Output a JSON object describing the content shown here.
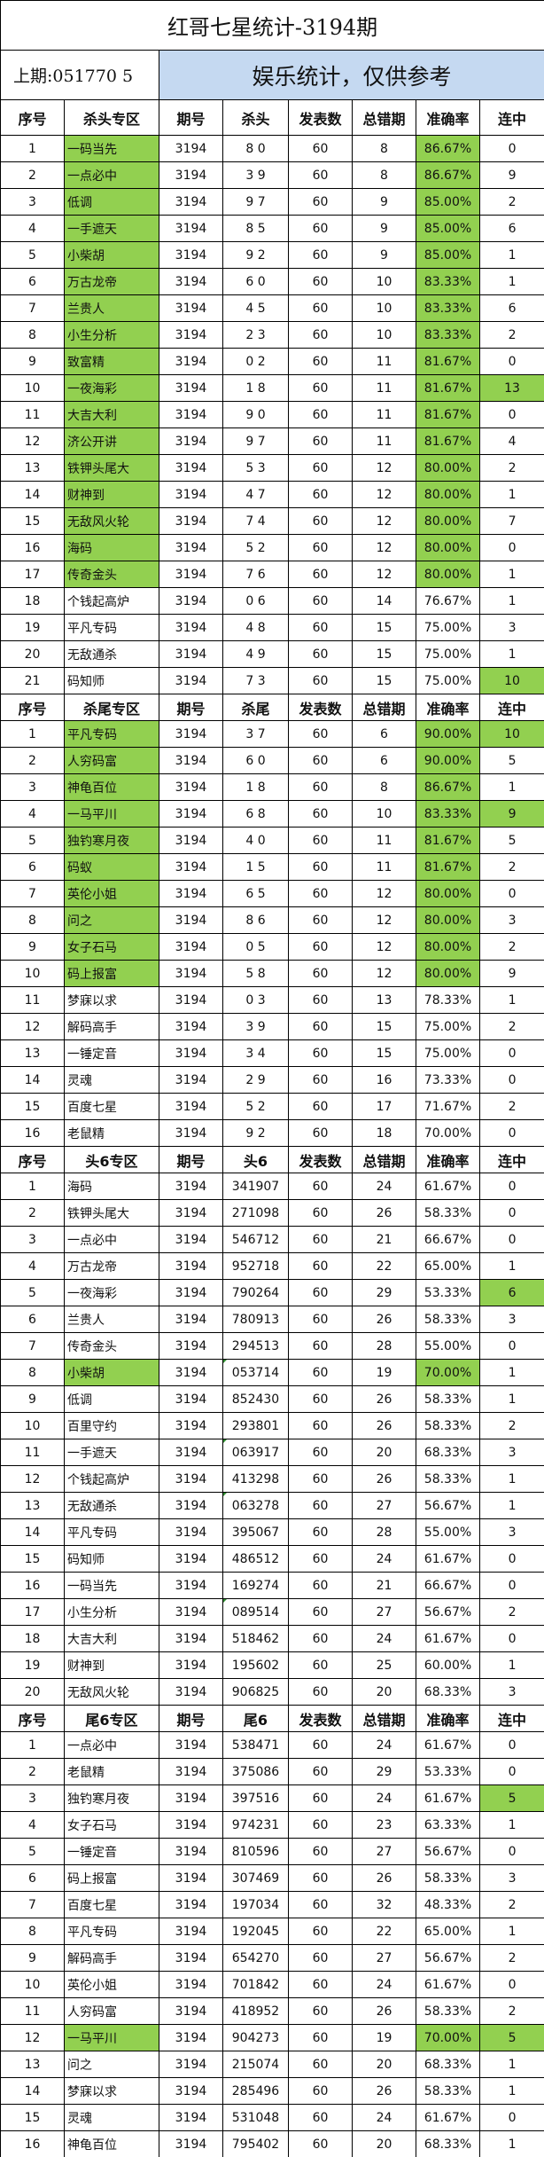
{
  "title": "红哥七星统计-3194期",
  "last_draw": "上期:051770 5",
  "note": "娱乐统计，仅供参考",
  "colors": {
    "highlight": "#92D050",
    "note_bg": "#C5D9F1"
  },
  "sections": [
    {
      "headers": [
        "序号",
        "杀头专区",
        "期号",
        "杀头",
        "发表数",
        "总错期",
        "准确率",
        "连中"
      ],
      "rows": [
        {
          "c": [
            "1",
            "一码当先",
            "3194",
            "8 0",
            "60",
            "8",
            "86.67%",
            "0"
          ],
          "hl": [
            "name",
            "rate"
          ]
        },
        {
          "c": [
            "2",
            "一点必中",
            "3194",
            "3 9",
            "60",
            "8",
            "86.67%",
            "9"
          ],
          "hl": [
            "name",
            "rate"
          ]
        },
        {
          "c": [
            "3",
            "低调",
            "3194",
            "9 7",
            "60",
            "9",
            "85.00%",
            "2"
          ],
          "hl": [
            "name",
            "rate"
          ]
        },
        {
          "c": [
            "4",
            "一手遮天",
            "3194",
            "8 5",
            "60",
            "9",
            "85.00%",
            "6"
          ],
          "hl": [
            "name",
            "rate"
          ]
        },
        {
          "c": [
            "5",
            "小柴胡",
            "3194",
            "9 2",
            "60",
            "9",
            "85.00%",
            "1"
          ],
          "hl": [
            "name",
            "rate"
          ]
        },
        {
          "c": [
            "6",
            "万古龙帝",
            "3194",
            "6 0",
            "60",
            "10",
            "83.33%",
            "1"
          ],
          "hl": [
            "name",
            "rate"
          ]
        },
        {
          "c": [
            "7",
            "兰贵人",
            "3194",
            "4 5",
            "60",
            "10",
            "83.33%",
            "6"
          ],
          "hl": [
            "name",
            "rate"
          ]
        },
        {
          "c": [
            "8",
            "小生分析",
            "3194",
            "2 3",
            "60",
            "10",
            "83.33%",
            "2"
          ],
          "hl": [
            "name",
            "rate"
          ]
        },
        {
          "c": [
            "9",
            "致富精",
            "3194",
            "0 2",
            "60",
            "11",
            "81.67%",
            "0"
          ],
          "hl": [
            "name",
            "rate"
          ]
        },
        {
          "c": [
            "10",
            "一夜海彩",
            "3194",
            "1 8",
            "60",
            "11",
            "81.67%",
            "13"
          ],
          "hl": [
            "name",
            "rate",
            "streak"
          ]
        },
        {
          "c": [
            "11",
            "大吉大利",
            "3194",
            "9 0",
            "60",
            "11",
            "81.67%",
            "0"
          ],
          "hl": [
            "name",
            "rate"
          ]
        },
        {
          "c": [
            "12",
            "济公开讲",
            "3194",
            "9 7",
            "60",
            "11",
            "81.67%",
            "4"
          ],
          "hl": [
            "name",
            "rate"
          ]
        },
        {
          "c": [
            "13",
            "铁钾头尾大",
            "3194",
            "5 3",
            "60",
            "12",
            "80.00%",
            "2"
          ],
          "hl": [
            "name",
            "rate"
          ]
        },
        {
          "c": [
            "14",
            "财神到",
            "3194",
            "4 7",
            "60",
            "12",
            "80.00%",
            "1"
          ],
          "hl": [
            "name",
            "rate"
          ]
        },
        {
          "c": [
            "15",
            "无敌风火轮",
            "3194",
            "7 4",
            "60",
            "12",
            "80.00%",
            "7"
          ],
          "hl": [
            "name",
            "rate"
          ]
        },
        {
          "c": [
            "16",
            "海码",
            "3194",
            "5 2",
            "60",
            "12",
            "80.00%",
            "0"
          ],
          "hl": [
            "name",
            "rate"
          ]
        },
        {
          "c": [
            "17",
            "传奇金头",
            "3194",
            "7 6",
            "60",
            "12",
            "80.00%",
            "1"
          ],
          "hl": [
            "name",
            "rate"
          ]
        },
        {
          "c": [
            "18",
            "个钱起高炉",
            "3194",
            "0 6",
            "60",
            "14",
            "76.67%",
            "1"
          ],
          "hl": []
        },
        {
          "c": [
            "19",
            "平凡专码",
            "3194",
            "4 8",
            "60",
            "15",
            "75.00%",
            "3"
          ],
          "hl": []
        },
        {
          "c": [
            "20",
            "无敌通杀",
            "3194",
            "4 9",
            "60",
            "15",
            "75.00%",
            "1"
          ],
          "hl": []
        },
        {
          "c": [
            "21",
            "码知师",
            "3194",
            "7 3",
            "60",
            "15",
            "75.00%",
            "10"
          ],
          "hl": [
            "streak"
          ]
        }
      ]
    },
    {
      "headers": [
        "序号",
        "杀尾专区",
        "期号",
        "杀尾",
        "发表数",
        "总错期",
        "准确率",
        "连中"
      ],
      "rows": [
        {
          "c": [
            "1",
            "平凡专码",
            "3194",
            "3 7",
            "60",
            "6",
            "90.00%",
            "10"
          ],
          "hl": [
            "name",
            "rate",
            "streak"
          ]
        },
        {
          "c": [
            "2",
            "人穷码富",
            "3194",
            "6 0",
            "60",
            "6",
            "90.00%",
            "5"
          ],
          "hl": [
            "name",
            "rate"
          ]
        },
        {
          "c": [
            "3",
            "神龟百位",
            "3194",
            "1 8",
            "60",
            "8",
            "86.67%",
            "1"
          ],
          "hl": [
            "name",
            "rate"
          ]
        },
        {
          "c": [
            "4",
            "一马平川",
            "3194",
            "6 8",
            "60",
            "10",
            "83.33%",
            "9"
          ],
          "hl": [
            "name",
            "rate",
            "streak"
          ]
        },
        {
          "c": [
            "5",
            "独钓寒月夜",
            "3194",
            "4 0",
            "60",
            "11",
            "81.67%",
            "5"
          ],
          "hl": [
            "name",
            "rate"
          ]
        },
        {
          "c": [
            "6",
            "码蚁",
            "3194",
            "1 5",
            "60",
            "11",
            "81.67%",
            "2"
          ],
          "hl": [
            "name",
            "rate"
          ]
        },
        {
          "c": [
            "7",
            "英伦小姐",
            "3194",
            "6 5",
            "60",
            "12",
            "80.00%",
            "0"
          ],
          "hl": [
            "name",
            "rate"
          ]
        },
        {
          "c": [
            "8",
            "问之",
            "3194",
            "8 6",
            "60",
            "12",
            "80.00%",
            "3"
          ],
          "hl": [
            "name",
            "rate"
          ]
        },
        {
          "c": [
            "9",
            "女子石马",
            "3194",
            "0 5",
            "60",
            "12",
            "80.00%",
            "2"
          ],
          "hl": [
            "name",
            "rate"
          ]
        },
        {
          "c": [
            "10",
            "码上报富",
            "3194",
            "5 8",
            "60",
            "12",
            "80.00%",
            "9"
          ],
          "hl": [
            "name",
            "rate"
          ]
        },
        {
          "c": [
            "11",
            "梦寐以求",
            "3194",
            "0 3",
            "60",
            "13",
            "78.33%",
            "1"
          ],
          "hl": []
        },
        {
          "c": [
            "12",
            "解码高手",
            "3194",
            "3 9",
            "60",
            "15",
            "75.00%",
            "2"
          ],
          "hl": []
        },
        {
          "c": [
            "13",
            "一锤定音",
            "3194",
            "3 4",
            "60",
            "15",
            "75.00%",
            "0"
          ],
          "hl": []
        },
        {
          "c": [
            "14",
            "灵魂",
            "3194",
            "2 9",
            "60",
            "16",
            "73.33%",
            "0"
          ],
          "hl": []
        },
        {
          "c": [
            "15",
            "百度七星",
            "3194",
            "5 2",
            "60",
            "17",
            "71.67%",
            "2"
          ],
          "hl": []
        },
        {
          "c": [
            "16",
            "老鼠精",
            "3194",
            "9 2",
            "60",
            "18",
            "70.00%",
            "0"
          ],
          "hl": []
        }
      ]
    },
    {
      "headers": [
        "序号",
        "头6专区",
        "期号",
        "头6",
        "发表数",
        "总错期",
        "准确率",
        "连中"
      ],
      "rows": [
        {
          "c": [
            "1",
            "海码",
            "3194",
            "341907",
            "60",
            "24",
            "61.67%",
            "0"
          ],
          "hl": []
        },
        {
          "c": [
            "2",
            "铁钾头尾大",
            "3194",
            "271098",
            "60",
            "26",
            "58.33%",
            "0"
          ],
          "hl": []
        },
        {
          "c": [
            "3",
            "一点必中",
            "3194",
            "546712",
            "60",
            "21",
            "66.67%",
            "0"
          ],
          "hl": []
        },
        {
          "c": [
            "4",
            "万古龙帝",
            "3194",
            "952718",
            "60",
            "22",
            "65.00%",
            "1"
          ],
          "hl": []
        },
        {
          "c": [
            "5",
            "一夜海彩",
            "3194",
            "790264",
            "60",
            "29",
            "53.33%",
            "6"
          ],
          "hl": [
            "streak"
          ]
        },
        {
          "c": [
            "6",
            "兰贵人",
            "3194",
            "780913",
            "60",
            "26",
            "58.33%",
            "3"
          ],
          "hl": []
        },
        {
          "c": [
            "7",
            "传奇金头",
            "3194",
            "294513",
            "60",
            "28",
            "55.00%",
            "0"
          ],
          "hl": []
        },
        {
          "c": [
            "8",
            "小柴胡",
            "3194",
            "053714",
            "60",
            "19",
            "70.00%",
            "1"
          ],
          "hl": [
            "name",
            "rate"
          ]
        },
        {
          "c": [
            "9",
            "低调",
            "3194",
            "852430",
            "60",
            "26",
            "58.33%",
            "1"
          ],
          "hl": []
        },
        {
          "c": [
            "10",
            "百里守约",
            "3194",
            "293801",
            "60",
            "26",
            "58.33%",
            "2"
          ],
          "hl": []
        },
        {
          "c": [
            "11",
            "一手遮天",
            "3194",
            "063917",
            "60",
            "20",
            "68.33%",
            "3"
          ],
          "hl": []
        },
        {
          "c": [
            "12",
            "个钱起高炉",
            "3194",
            "413298",
            "60",
            "26",
            "58.33%",
            "1"
          ],
          "hl": []
        },
        {
          "c": [
            "13",
            "无敌通杀",
            "3194",
            "063278",
            "60",
            "27",
            "56.67%",
            "1"
          ],
          "hl": []
        },
        {
          "c": [
            "14",
            "平凡专码",
            "3194",
            "395067",
            "60",
            "28",
            "55.00%",
            "3"
          ],
          "hl": []
        },
        {
          "c": [
            "15",
            "码知师",
            "3194",
            "486512",
            "60",
            "24",
            "61.67%",
            "0"
          ],
          "hl": []
        },
        {
          "c": [
            "16",
            "一码当先",
            "3194",
            "169274",
            "60",
            "21",
            "66.67%",
            "0"
          ],
          "hl": []
        },
        {
          "c": [
            "17",
            "小生分析",
            "3194",
            "089514",
            "60",
            "27",
            "56.67%",
            "2"
          ],
          "hl": []
        },
        {
          "c": [
            "18",
            "大吉大利",
            "3194",
            "518462",
            "60",
            "24",
            "61.67%",
            "0"
          ],
          "hl": []
        },
        {
          "c": [
            "19",
            "财神到",
            "3194",
            "195602",
            "60",
            "25",
            "60.00%",
            "1"
          ],
          "hl": []
        },
        {
          "c": [
            "20",
            "无敌风火轮",
            "3194",
            "906825",
            "60",
            "20",
            "68.33%",
            "3"
          ],
          "hl": []
        }
      ]
    },
    {
      "headers": [
        "序号",
        "尾6专区",
        "期号",
        "尾6",
        "发表数",
        "总错期",
        "准确率",
        "连中"
      ],
      "rows": [
        {
          "c": [
            "1",
            "一点必中",
            "3194",
            "538471",
            "60",
            "24",
            "61.67%",
            "0"
          ],
          "hl": []
        },
        {
          "c": [
            "2",
            "老鼠精",
            "3194",
            "375086",
            "60",
            "29",
            "53.33%",
            "0"
          ],
          "hl": []
        },
        {
          "c": [
            "3",
            "独钓寒月夜",
            "3194",
            "397516",
            "60",
            "24",
            "61.67%",
            "5"
          ],
          "hl": [
            "streak"
          ]
        },
        {
          "c": [
            "4",
            "女子石马",
            "3194",
            "974231",
            "60",
            "23",
            "63.33%",
            "1"
          ],
          "hl": []
        },
        {
          "c": [
            "5",
            "一锤定音",
            "3194",
            "810596",
            "60",
            "27",
            "56.67%",
            "0"
          ],
          "hl": []
        },
        {
          "c": [
            "6",
            "码上报富",
            "3194",
            "307469",
            "60",
            "26",
            "58.33%",
            "3"
          ],
          "hl": []
        },
        {
          "c": [
            "7",
            "百度七星",
            "3194",
            "197034",
            "60",
            "32",
            "48.33%",
            "2"
          ],
          "hl": []
        },
        {
          "c": [
            "8",
            "平凡专码",
            "3194",
            "192045",
            "60",
            "22",
            "65.00%",
            "1"
          ],
          "hl": []
        },
        {
          "c": [
            "9",
            "解码高手",
            "3194",
            "654270",
            "60",
            "27",
            "56.67%",
            "2"
          ],
          "hl": []
        },
        {
          "c": [
            "10",
            "英伦小姐",
            "3194",
            "701842",
            "60",
            "24",
            "61.67%",
            "0"
          ],
          "hl": []
        },
        {
          "c": [
            "11",
            "人穷码富",
            "3194",
            "418952",
            "60",
            "26",
            "58.33%",
            "2"
          ],
          "hl": []
        },
        {
          "c": [
            "12",
            "一马平川",
            "3194",
            "904273",
            "60",
            "19",
            "70.00%",
            "5"
          ],
          "hl": [
            "name",
            "rate",
            "streak"
          ]
        },
        {
          "c": [
            "13",
            "问之",
            "3194",
            "215074",
            "60",
            "20",
            "68.33%",
            "1"
          ],
          "hl": []
        },
        {
          "c": [
            "14",
            "梦寐以求",
            "3194",
            "285496",
            "60",
            "26",
            "58.33%",
            "1"
          ],
          "hl": []
        },
        {
          "c": [
            "15",
            "灵魂",
            "3194",
            "531048",
            "60",
            "24",
            "61.67%",
            "0"
          ],
          "hl": []
        },
        {
          "c": [
            "16",
            "神龟百位",
            "3194",
            "795402",
            "60",
            "20",
            "68.33%",
            "1"
          ],
          "hl": []
        }
      ]
    }
  ]
}
